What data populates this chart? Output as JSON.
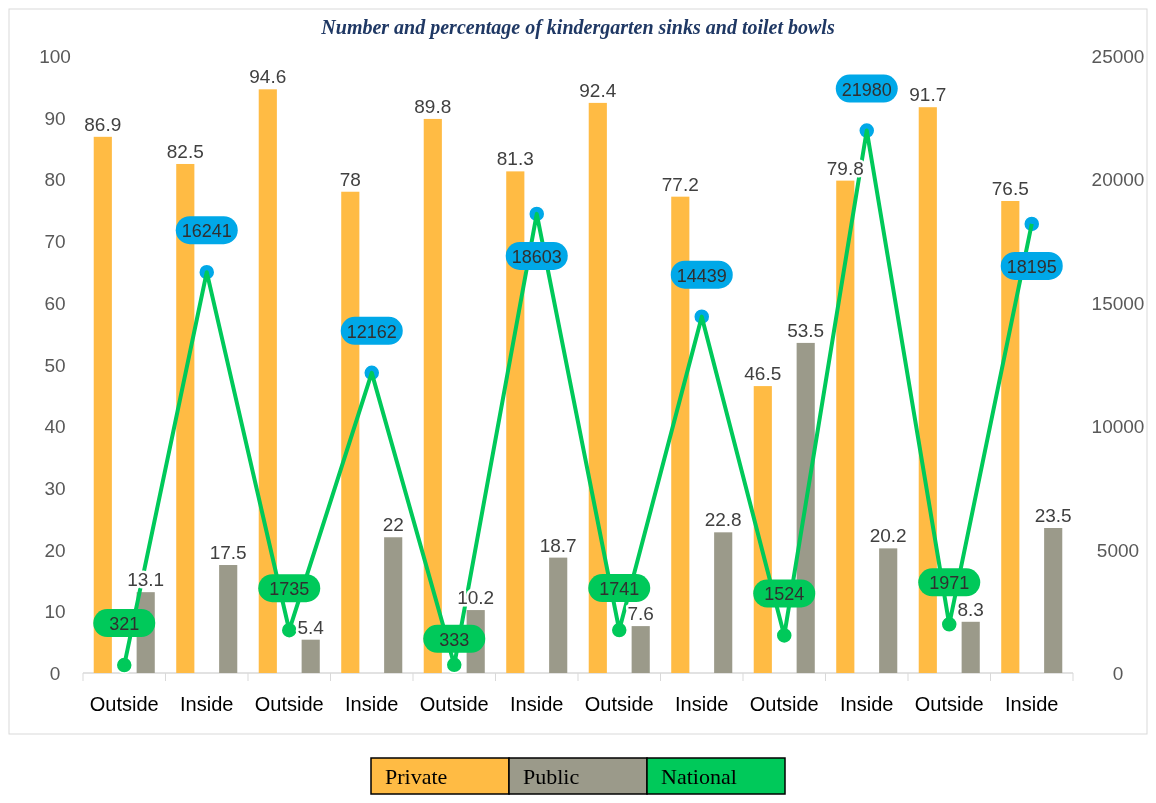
{
  "chart_data": {
    "type": "bar",
    "title": "Number and percentage of kindergarten sinks and toilet bowls",
    "categories": [
      "Outside",
      "Inside",
      "Outside",
      "Inside",
      "Outside",
      "Inside",
      "Outside",
      "Inside",
      "Outside",
      "Inside",
      "Outside",
      "Inside"
    ],
    "series": [
      {
        "name": "Private",
        "color": "#ffbb44",
        "values": [
          86.9,
          82.5,
          94.6,
          78,
          89.8,
          81.3,
          92.4,
          77.2,
          46.5,
          79.8,
          91.7,
          76.5
        ]
      },
      {
        "name": "Public",
        "color": "#9b9a8a",
        "values": [
          13.1,
          17.5,
          5.4,
          22,
          10.2,
          18.7,
          7.6,
          22.8,
          53.5,
          20.2,
          8.3,
          23.5
        ]
      },
      {
        "name": "National",
        "type": "line",
        "axis": "y2",
        "color": "#00c95a",
        "colors": [
          "#00c95a",
          "#00a8e8",
          "#00c95a",
          "#00a8e8",
          "#00c95a",
          "#00a8e8",
          "#00c95a",
          "#00a8e8",
          "#00c95a",
          "#00a8e8",
          "#00c95a",
          "#00a8e8"
        ],
        "values": [
          321,
          16241,
          1735,
          12162,
          333,
          18603,
          1741,
          14439,
          1524,
          21980,
          1971,
          18195
        ]
      }
    ],
    "ylim": [
      0,
      100
    ],
    "yticks": [
      0,
      10,
      20,
      30,
      40,
      50,
      60,
      70,
      80,
      90,
      100
    ],
    "y2lim": [
      0,
      25000
    ],
    "y2ticks": [
      0,
      5000,
      10000,
      15000,
      20000,
      25000
    ],
    "data_labels": true,
    "marker": "circle",
    "legend": "bottom",
    "grid": false
  }
}
